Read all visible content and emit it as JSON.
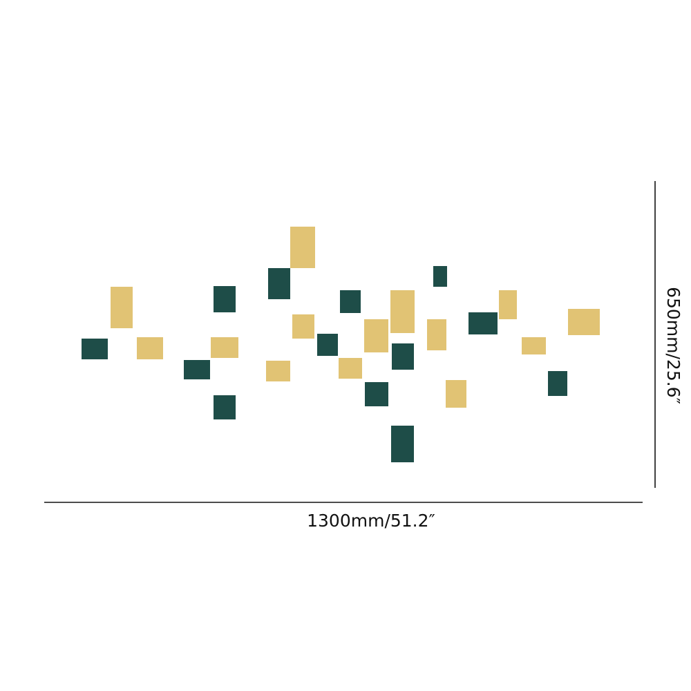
{
  "dimensions": {
    "width": "1300mm/51.2″",
    "height": "650mm/25.6″"
  }
}
